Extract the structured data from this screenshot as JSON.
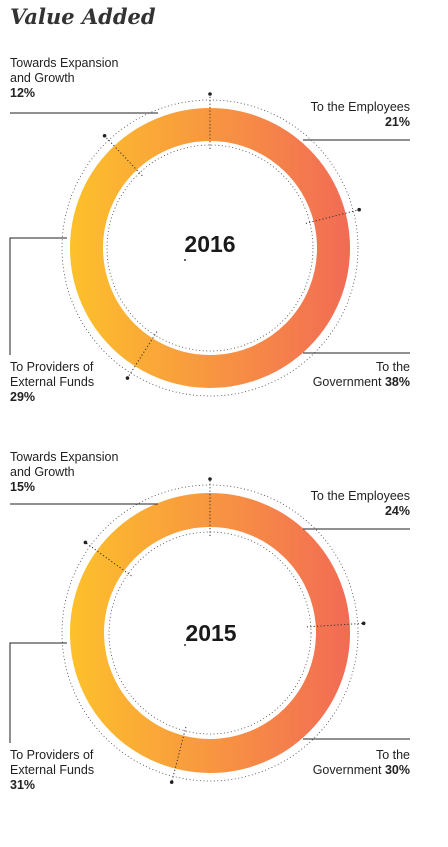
{
  "title": "Value Added",
  "chart_data": [
    {
      "type": "pie",
      "center_label": "2016",
      "slices": [
        {
          "label": "To the Employees",
          "value": 21
        },
        {
          "label": "To the Government",
          "value": 38
        },
        {
          "label": "To Providers of External Funds",
          "value": 29
        },
        {
          "label": "Towards Expansion and Growth",
          "value": 12
        }
      ],
      "labels": {
        "expansion": {
          "l1": "Towards Expansion",
          "l2": "and Growth",
          "pct": "12%"
        },
        "employees": {
          "l1": "To the Employees",
          "pct": "21%"
        },
        "government": {
          "l1": "To the",
          "l2": "Government",
          "pct": "38%"
        },
        "providers": {
          "l1": "To Providers of",
          "l2": "External Funds",
          "pct": "29%"
        }
      }
    },
    {
      "type": "pie",
      "center_label": "2015",
      "slices": [
        {
          "label": "To the Employees",
          "value": 24
        },
        {
          "label": "To the Government",
          "value": 30
        },
        {
          "label": "To Providers of External Funds",
          "value": 31
        },
        {
          "label": "Towards Expansion and Growth",
          "value": 15
        }
      ],
      "labels": {
        "expansion": {
          "l1": "Towards Expansion",
          "l2": "and Growth",
          "pct": "15%"
        },
        "employees": {
          "l1": "To the Employees",
          "pct": "24%"
        },
        "government": {
          "l1": "To the",
          "l2": "Government",
          "pct": "30%"
        },
        "providers": {
          "l1": "To Providers of",
          "l2": "External Funds",
          "pct": "31%"
        }
      }
    }
  ],
  "colors": {
    "gradient_start": "#fdc12b",
    "gradient_end": "#f26b55",
    "line": "#222222"
  }
}
